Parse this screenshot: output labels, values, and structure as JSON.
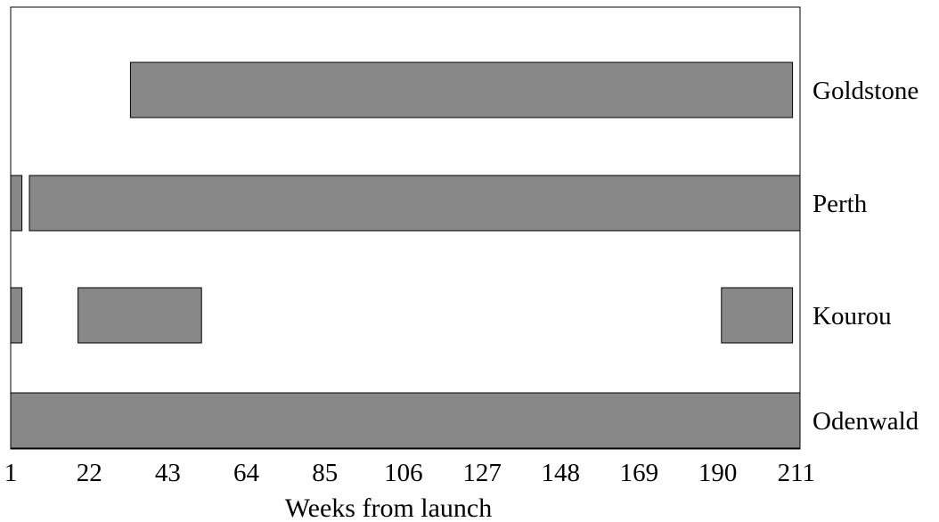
{
  "chart_data": {
    "type": "timeline",
    "xlabel": "Weeks from launch",
    "xlim": [
      1,
      212
    ],
    "x_ticks": [
      1,
      22,
      43,
      64,
      85,
      106,
      127,
      148,
      169,
      190,
      211
    ],
    "grid": false,
    "rows": [
      {
        "label": "Goldstone",
        "intervals": [
          [
            33,
            210
          ]
        ]
      },
      {
        "label": "Perth",
        "intervals": [
          [
            1,
            4
          ],
          [
            6,
            212
          ]
        ]
      },
      {
        "label": "Kourou",
        "intervals": [
          [
            1,
            4
          ],
          [
            19,
            52
          ],
          [
            191,
            210
          ]
        ]
      },
      {
        "label": "Odenwald",
        "intervals": [
          [
            1,
            212
          ]
        ]
      }
    ],
    "colors": {
      "bar_fill": "#888888",
      "bar_stroke": "#000000",
      "frame": "#000000"
    }
  }
}
